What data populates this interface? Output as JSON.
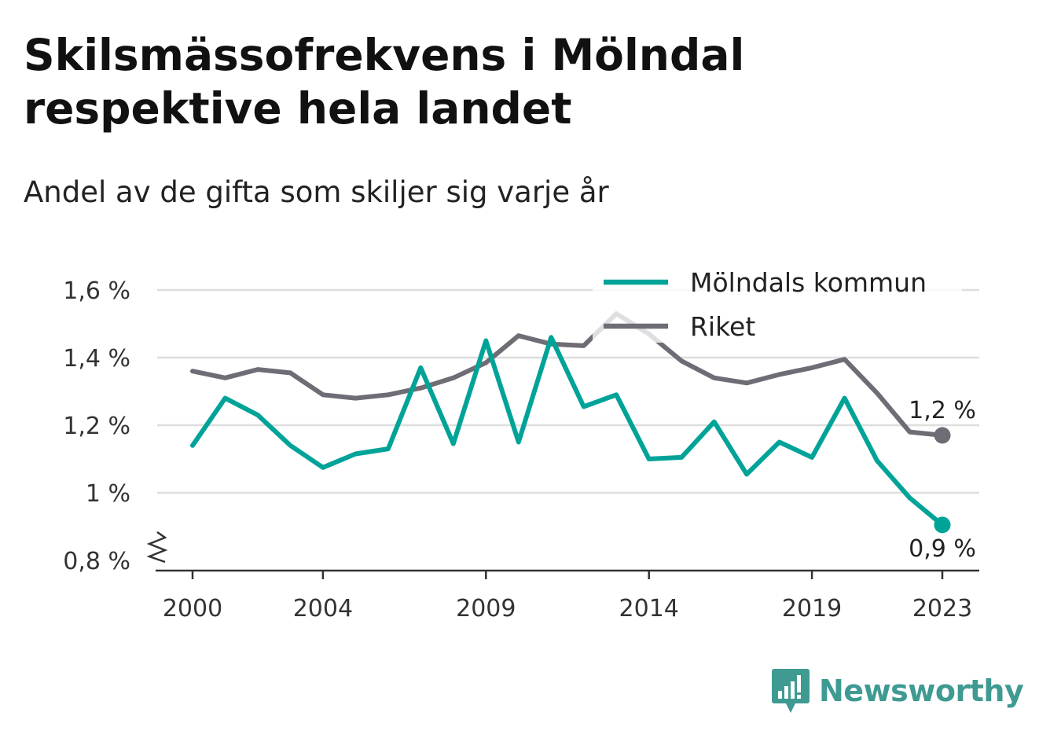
{
  "header": {
    "title_lines": [
      "Skilsmässofrekvens i Mölndal",
      "respektive hela landet"
    ],
    "subtitle": "Andel av de gifta som skiljer sig varje år"
  },
  "chart_data": {
    "type": "line",
    "title": "Skilsmässofrekvens i Mölndal respektive hela landet",
    "subtitle": "Andel av de gifta som skiljer sig varje år",
    "xlabel": "",
    "ylabel": "",
    "x": [
      2000,
      2001,
      2002,
      2003,
      2004,
      2005,
      2006,
      2007,
      2008,
      2009,
      2010,
      2011,
      2012,
      2013,
      2014,
      2015,
      2016,
      2017,
      2018,
      2019,
      2020,
      2021,
      2022,
      2023
    ],
    "x_tick_labels": [
      "2000",
      "2004",
      "2009",
      "2014",
      "2019",
      "2023"
    ],
    "x_tick_values": [
      2000,
      2004,
      2009,
      2014,
      2019,
      2023
    ],
    "y_tick_labels": [
      "0,8 %",
      "1 %",
      "1,2 %",
      "1,4 %",
      "1,6 %"
    ],
    "y_tick_values": [
      0.8,
      1.0,
      1.2,
      1.4,
      1.6
    ],
    "ylim": [
      0.8,
      1.6
    ],
    "xlim": [
      2000,
      2023
    ],
    "grid": "horizontal",
    "axis_break": true,
    "legend_position": "top-right",
    "series": [
      {
        "name": "Mölndals kommun",
        "color": "#00a398",
        "values": [
          1.14,
          1.28,
          1.23,
          1.14,
          1.075,
          1.115,
          1.13,
          1.37,
          1.145,
          1.45,
          1.15,
          1.46,
          1.255,
          1.29,
          1.1,
          1.105,
          1.21,
          1.055,
          1.15,
          1.105,
          1.28,
          1.095,
          0.985,
          0.905
        ],
        "end_label": "0,9 %"
      },
      {
        "name": "Riket",
        "color": "#6e6d75",
        "values": [
          1.36,
          1.34,
          1.365,
          1.355,
          1.29,
          1.28,
          1.29,
          1.31,
          1.34,
          1.385,
          1.465,
          1.44,
          1.435,
          1.53,
          1.47,
          1.39,
          1.34,
          1.325,
          1.35,
          1.37,
          1.395,
          1.295,
          1.18,
          1.17
        ],
        "end_label": "1,2 %"
      }
    ]
  },
  "brand": {
    "name": "Newsworthy",
    "color": "#3f9a92",
    "icon": "bar-chart-speech-bubble-icon"
  }
}
